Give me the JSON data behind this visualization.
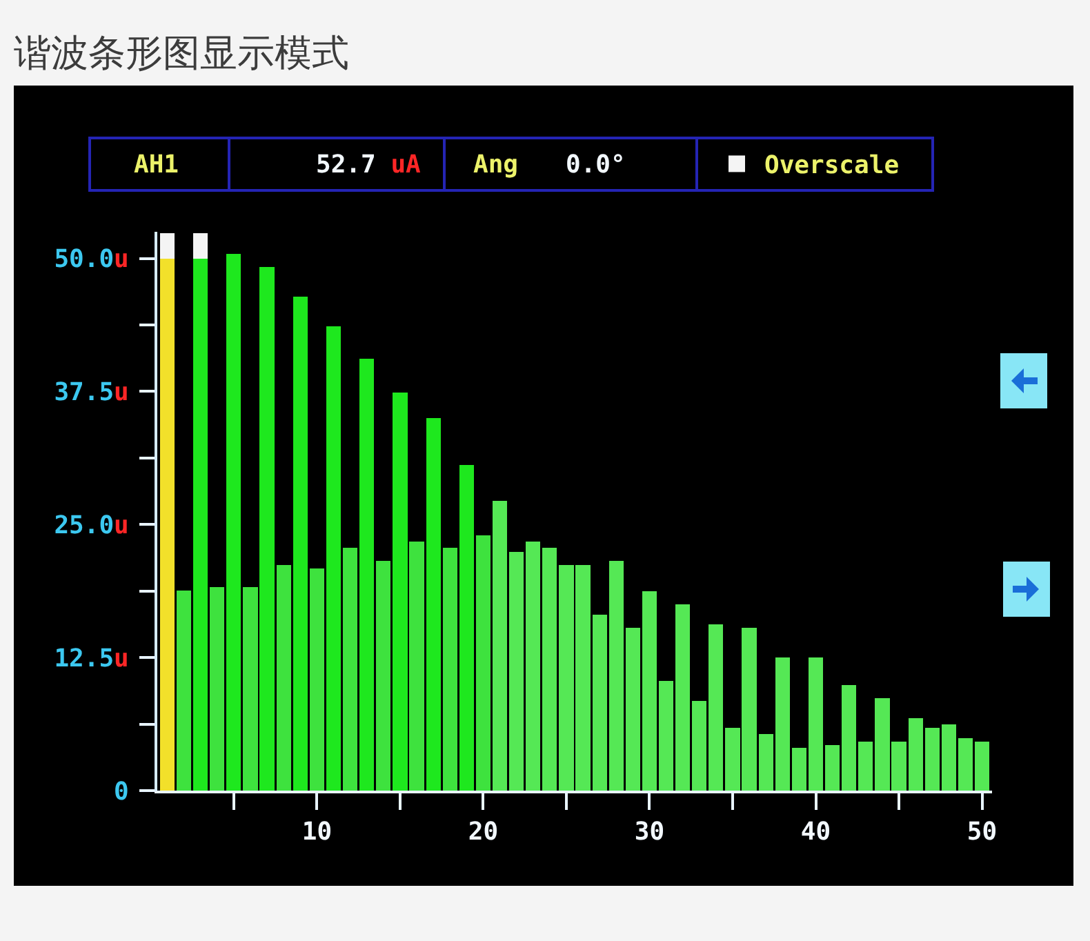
{
  "chart_data": {
    "type": "bar",
    "title": "谐波条形图显示模式",
    "annotations": [
      "AH1",
      "52.7 uA",
      "Ang",
      "0.0°"
    ],
    "x": [
      1,
      2,
      3,
      4,
      5,
      6,
      7,
      8,
      9,
      10,
      11,
      12,
      13,
      14,
      15,
      16,
      17,
      18,
      19,
      20,
      21,
      22,
      23,
      24,
      25,
      26,
      27,
      28,
      29,
      30,
      31,
      32,
      33,
      34,
      35,
      36,
      37,
      38,
      39,
      40,
      41,
      42,
      43,
      44,
      45,
      46,
      47,
      48,
      49,
      50
    ],
    "series": [
      {
        "values": [
          50,
          18.8,
          50,
          19.1,
          50.4,
          19.1,
          49.2,
          21.2,
          46.4,
          20.9,
          43.6,
          22.8,
          40.6,
          21.6,
          37.4,
          23.4,
          35.0,
          22.8,
          30.6,
          24.0,
          27.2,
          22.4,
          23.4,
          22.8,
          21.2,
          21.2,
          16.5,
          21.6,
          15.3,
          18.7,
          10.3,
          17.5,
          8.4,
          15.6,
          5.9,
          15.3,
          5.3,
          12.5,
          4.0,
          12.5,
          4.3,
          9.9,
          4.6,
          8.7,
          4.6,
          6.8,
          5.9,
          6.2,
          4.9,
          4.6
        ],
        "colors": [
          "#f2e02a",
          "#3ee23e",
          "#1ee81e",
          "#3ee23e",
          "#1ee81e",
          "#3ee23e",
          "#1ee81e",
          "#3ee23e",
          "#1ee81e",
          "#3ee23e",
          "#1ee81e",
          "#3ee23e",
          "#1ee81e",
          "#3ee23e",
          "#1ee81e",
          "#3ee23e",
          "#1ee81e",
          "#3ee23e",
          "#1ee81e",
          "#3ee23e",
          "#55e855",
          "#55e855",
          "#55e855",
          "#55e855",
          "#55e855",
          "#55e855",
          "#55e855",
          "#55e855",
          "#55e855",
          "#55e855",
          "#55e855",
          "#55e855",
          "#55e855",
          "#55e855",
          "#55e855",
          "#55e855",
          "#55e855",
          "#55e855",
          "#55e855",
          "#55e855",
          "#55e855",
          "#55e855",
          "#55e855",
          "#55e855",
          "#55e855",
          "#55e855",
          "#55e855",
          "#55e855",
          "#55e855",
          "#55e855"
        ]
      },
      {
        "name": "Overscale",
        "color": "#f4f4f4",
        "values": [
          2.4,
          null,
          2.4,
          null,
          null,
          null,
          null,
          null,
          null,
          null,
          null,
          null,
          null,
          null,
          null,
          null,
          null,
          null,
          null,
          null,
          null,
          null,
          null,
          null,
          null,
          null,
          null,
          null,
          null,
          null,
          null,
          null,
          null,
          null,
          null,
          null,
          null,
          null,
          null,
          null,
          null,
          null,
          null,
          null,
          null,
          null,
          null,
          null,
          null,
          null
        ]
      }
    ],
    "stacked": true,
    "xlim": [
      0.4,
      50.6
    ],
    "xticks": [
      {
        "value": 5,
        "label": null
      },
      10,
      {
        "value": 15,
        "label": null
      },
      20,
      {
        "value": 25,
        "label": null
      },
      30,
      {
        "value": 35,
        "label": null
      },
      40,
      {
        "value": 45,
        "label": null
      },
      50
    ],
    "ylim": [
      0,
      52.5
    ],
    "yticks": [
      0,
      {
        "value": 6.25,
        "label": null
      },
      {
        "value": 12.5,
        "label": "12.5u"
      },
      {
        "value": 18.75,
        "label": null
      },
      {
        "value": 25,
        "label": "25.0u"
      },
      {
        "value": 31.25,
        "label": null
      },
      {
        "value": 37.5,
        "label": "37.5u"
      },
      {
        "value": 43.75,
        "label": null
      },
      {
        "value": 50,
        "label": "50.0u"
      }
    ],
    "legend": "top right"
  }
}
